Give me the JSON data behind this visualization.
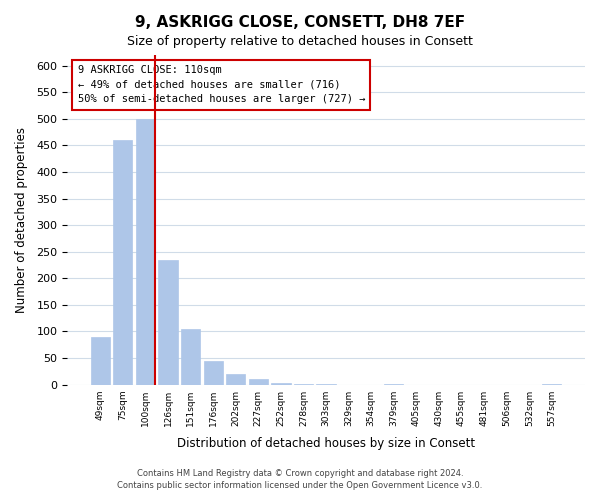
{
  "title": "9, ASKRIGG CLOSE, CONSETT, DH8 7EF",
  "subtitle": "Size of property relative to detached houses in Consett",
  "xlabel": "Distribution of detached houses by size in Consett",
  "ylabel": "Number of detached properties",
  "categories": [
    "49sqm",
    "75sqm",
    "100sqm",
    "126sqm",
    "151sqm",
    "176sqm",
    "202sqm",
    "227sqm",
    "252sqm",
    "278sqm",
    "303sqm",
    "329sqm",
    "354sqm",
    "379sqm",
    "405sqm",
    "430sqm",
    "455sqm",
    "481sqm",
    "506sqm",
    "532sqm",
    "557sqm"
  ],
  "values": [
    90,
    460,
    500,
    235,
    105,
    45,
    20,
    10,
    3,
    1,
    1,
    0,
    0,
    1,
    0,
    0,
    0,
    0,
    0,
    0,
    1
  ],
  "bar_color": "#aec6e8",
  "vline_x_index": 2,
  "vline_color": "#cc0000",
  "annotation_line1": "9 ASKRIGG CLOSE: 110sqm",
  "annotation_line2": "← 49% of detached houses are smaller (716)",
  "annotation_line3": "50% of semi-detached houses are larger (727) →",
  "ylim": [
    0,
    620
  ],
  "yticks": [
    0,
    50,
    100,
    150,
    200,
    250,
    300,
    350,
    400,
    450,
    500,
    550,
    600
  ],
  "footer_line1": "Contains HM Land Registry data © Crown copyright and database right 2024.",
  "footer_line2": "Contains public sector information licensed under the Open Government Licence v3.0.",
  "background_color": "#ffffff",
  "grid_color": "#d0dce8"
}
